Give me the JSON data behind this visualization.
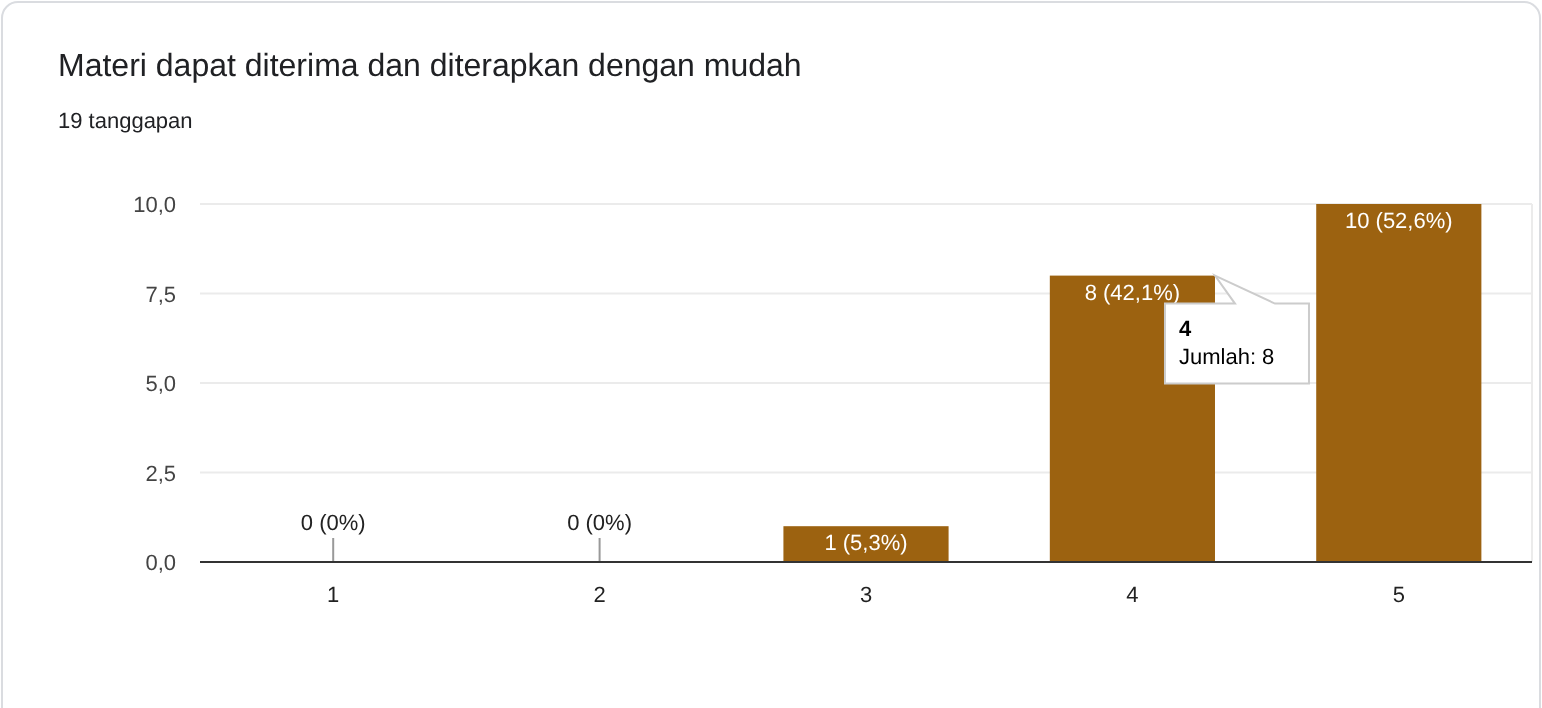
{
  "chart_data": {
    "type": "bar",
    "title": "Materi dapat diterima dan diterapkan dengan mudah",
    "subtitle": "19 tanggapan",
    "categories": [
      "1",
      "2",
      "3",
      "4",
      "5"
    ],
    "values": [
      0,
      0,
      1,
      8,
      10
    ],
    "value_labels": [
      "0 (0%)",
      "0 (0%)",
      "1 (5,3%)",
      "8 (42,1%)",
      "10 (52,6%)"
    ],
    "color": "#9c6210",
    "ylim": [
      0,
      10
    ],
    "yticks": [
      {
        "value": 0,
        "label": "0,0"
      },
      {
        "value": 2.5,
        "label": "2,5"
      },
      {
        "value": 5,
        "label": "5,0"
      },
      {
        "value": 7.5,
        "label": "7,5"
      },
      {
        "value": 10,
        "label": "10,0"
      }
    ],
    "grid": "y",
    "annotations": [
      {
        "text": "4\nJumlah: 8",
        "x": "4",
        "y": 8
      }
    ]
  }
}
